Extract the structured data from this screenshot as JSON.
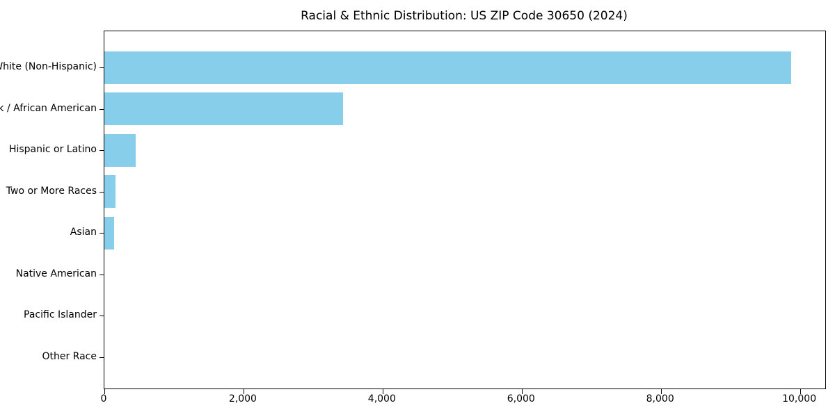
{
  "title": "Racial & Ethnic Distribution: US ZIP Code 30650 (2024)",
  "colors": {
    "bar": "#87CEEB",
    "axis": "#000000",
    "text": "#000000",
    "background": "#FFFFFF"
  },
  "chart_data": {
    "type": "bar",
    "orientation": "horizontal",
    "title": "Racial & Ethnic Distribution: US ZIP Code 30650 (2024)",
    "categories": [
      "White (Non-Hispanic)",
      "Black / African American",
      "Hispanic or Latino",
      "Two or More Races",
      "Asian",
      "Native American",
      "Pacific Islander",
      "Other Race"
    ],
    "values": [
      9870,
      3430,
      450,
      160,
      140,
      0,
      0,
      0
    ],
    "xlabel": "",
    "ylabel": "",
    "xlim": [
      0,
      10364
    ],
    "x_ticks": [
      0,
      2000,
      4000,
      6000,
      8000,
      10000
    ],
    "x_tick_labels": [
      "0",
      "2,000",
      "4,000",
      "6,000",
      "8,000",
      "10,000"
    ],
    "grid": false,
    "legend": null,
    "bar_color": "#87CEEB",
    "largest_category": "White (Non-Hispanic)"
  }
}
